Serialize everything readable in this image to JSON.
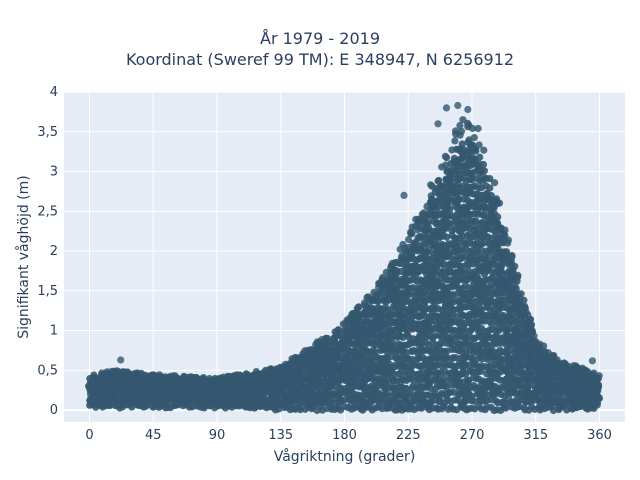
{
  "chart_data": {
    "type": "scatter",
    "title_line1": "År 1979 - 2019",
    "title_line2": "Koordinat (Sweref 99 TM): E 348947, N 6256912",
    "xlabel": "Vågriktning (grader)",
    "ylabel": "Signifikant våghöjd (m)",
    "xlim": [
      -18,
      378
    ],
    "ylim": [
      -0.15,
      4.0
    ],
    "xticks": [
      0,
      45,
      90,
      135,
      180,
      225,
      270,
      315,
      360
    ],
    "xtick_labels": [
      "0",
      "45",
      "90",
      "135",
      "180",
      "225",
      "270",
      "315",
      "360"
    ],
    "yticks": [
      0,
      0.5,
      1,
      1.5,
      2,
      2.5,
      3,
      3.5,
      4
    ],
    "ytick_labels": [
      "0",
      "0,5",
      "1",
      "1,5",
      "2",
      "2,5",
      "3",
      "3,5",
      "4"
    ],
    "grid": true,
    "marker_color": "#34586f",
    "background": "#e5ecf6",
    "envelope": {
      "direction": [
        0,
        20,
        45,
        90,
        135,
        160,
        180,
        200,
        225,
        245,
        260,
        270,
        280,
        295,
        315,
        330,
        345,
        360
      ],
      "upper_height": [
        0.45,
        0.5,
        0.45,
        0.4,
        0.55,
        0.85,
        1.1,
        1.5,
        2.2,
        3.0,
        3.6,
        3.75,
        3.3,
        2.2,
        0.9,
        0.65,
        0.55,
        0.45
      ],
      "lower_height": [
        0.05,
        0.05,
        0.05,
        0.05,
        0.02,
        0.02,
        0.02,
        0.02,
        0.02,
        0.02,
        0.02,
        0.02,
        0.02,
        0.02,
        0.02,
        0.02,
        0.02,
        0.05
      ]
    },
    "notable_points": [
      {
        "x": 260,
        "y": 3.83
      },
      {
        "x": 252,
        "y": 3.8
      },
      {
        "x": 267,
        "y": 3.78
      },
      {
        "x": 246,
        "y": 3.6
      },
      {
        "x": 222,
        "y": 2.7
      },
      {
        "x": 22,
        "y": 0.63
      },
      {
        "x": 355,
        "y": 0.62
      }
    ]
  }
}
